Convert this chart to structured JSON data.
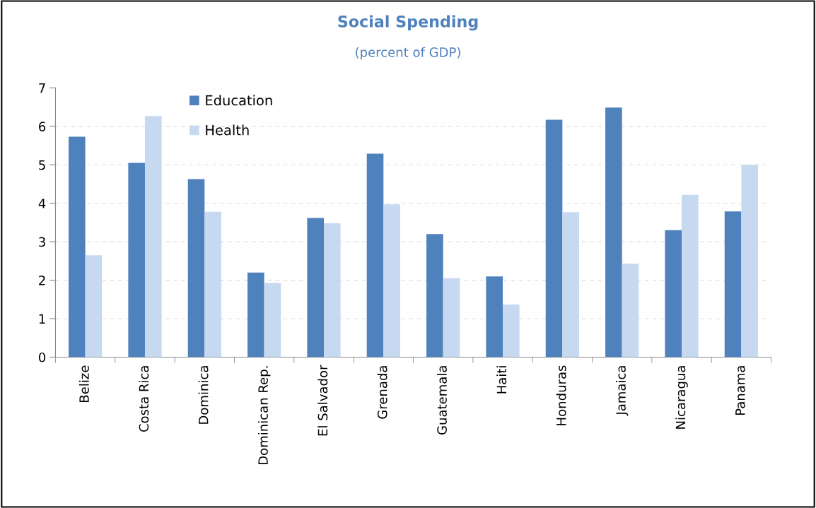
{
  "chart_data": {
    "type": "bar",
    "title": "Social Spending",
    "subtitle": "(percent of GDP)",
    "categories": [
      "Belize",
      "Costa Rica",
      "Dominica",
      "Dominican Rep.",
      "El Salvador",
      "Grenada",
      "Guatemala",
      "Haiti",
      "Honduras",
      "Jamaica",
      "Nicaragua",
      "Panama"
    ],
    "series": [
      {
        "name": "Education",
        "color": "#4f81bd",
        "values": [
          5.73,
          5.05,
          4.63,
          2.2,
          3.62,
          5.29,
          3.2,
          2.1,
          6.17,
          6.49,
          3.3,
          3.79
        ]
      },
      {
        "name": "Health",
        "color": "#c6d9f1",
        "values": [
          2.65,
          6.27,
          3.78,
          1.93,
          3.48,
          3.97,
          2.05,
          1.37,
          3.77,
          2.43,
          4.22,
          5.0
        ]
      }
    ],
    "ylim": [
      0,
      7
    ],
    "yticks": [
      0,
      1,
      2,
      3,
      4,
      5,
      6,
      7
    ],
    "grid": "y",
    "legend": "top left"
  }
}
